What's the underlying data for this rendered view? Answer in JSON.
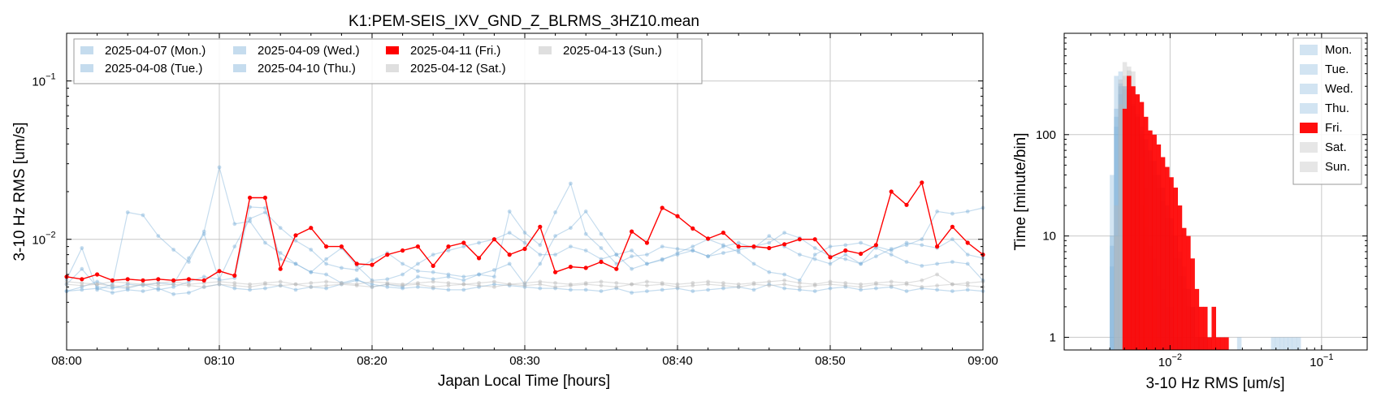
{
  "chart_data": [
    {
      "type": "line",
      "title": "K1:PEM-SEIS_IXV_GND_Z_BLRMS_3HZ10.mean",
      "xlabel": "Japan Local Time [hours]",
      "ylabel": "3-10 Hz RMS [um/s]",
      "x_tick_labels": [
        "08:00",
        "08:10",
        "08:20",
        "08:30",
        "08:40",
        "08:50",
        "09:00"
      ],
      "x_range_minutes": [
        0,
        60
      ],
      "y_scale": "log",
      "ylim": [
        0.002,
        0.2
      ],
      "y_tick_labels": [
        {
          "mant": "10",
          "exp": "−1",
          "value": 0.1
        },
        {
          "mant": "10",
          "exp": "−2",
          "value": 0.01
        }
      ],
      "grid": true,
      "legend_position": "top-left",
      "legend_columns": 4,
      "highlight_color": "#ff0000",
      "weekday_color": "#7fb2da",
      "weekend_color": "#b8b8b8",
      "series": [
        {
          "name": "2025-04-07 (Mon.)",
          "kind": "weekday",
          "values": [
            0.0056,
            0.0088,
            0.0048,
            0.0052,
            0.0148,
            0.0142,
            0.0105,
            0.0086,
            0.0072,
            0.0112,
            0.0285,
            0.0125,
            0.013,
            0.0095,
            0.0082,
            0.007,
            0.0062,
            0.006,
            0.0053,
            0.0056,
            0.005,
            0.0052,
            0.005,
            0.0058,
            0.0056,
            0.0058,
            0.0055,
            0.006,
            0.0064,
            0.007,
            0.0052,
            0.007,
            0.0105,
            0.0118,
            0.015,
            0.0108,
            0.008,
            0.0065,
            0.007,
            0.0074,
            0.0082,
            0.009,
            0.01,
            0.0092,
            0.0083,
            0.007,
            0.0062,
            0.006,
            0.0055,
            0.008,
            0.009,
            0.0092,
            0.0095,
            0.0088,
            0.008,
            0.0072,
            0.0068,
            0.007,
            0.0072,
            0.007,
            0.0055
          ]
        },
        {
          "name": "2025-04-08 (Tue.)",
          "kind": "weekday",
          "values": [
            0.0047,
            0.0048,
            0.0049,
            0.0046,
            0.0048,
            0.0047,
            0.0049,
            0.0045,
            0.0046,
            0.005,
            0.0052,
            0.0049,
            0.0048,
            0.0049,
            0.0051,
            0.0048,
            0.005,
            0.0049,
            0.0052,
            0.0055,
            0.0052,
            0.005,
            0.0049,
            0.005,
            0.0049,
            0.0048,
            0.0048,
            0.005,
            0.0052,
            0.0051,
            0.005,
            0.0049,
            0.0049,
            0.0048,
            0.0048,
            0.0047,
            0.0049,
            0.0046,
            0.0047,
            0.0048,
            0.0049,
            0.0047,
            0.0048,
            0.0049,
            0.005,
            0.0048,
            0.0052,
            0.0049,
            0.0048,
            0.0047,
            0.0049,
            0.005,
            0.0048,
            0.0049,
            0.005,
            0.0047,
            0.0049,
            0.0048,
            0.0047,
            0.0048,
            0.0047
          ]
        },
        {
          "name": "2025-04-09 (Wed.)",
          "kind": "weekday",
          "values": [
            0.0052,
            0.0065,
            0.005,
            0.0049,
            0.0052,
            0.0051,
            0.0053,
            0.0052,
            0.0076,
            0.0108,
            0.0055,
            0.0057,
            0.016,
            0.0158,
            0.0075,
            0.007,
            0.0062,
            0.0075,
            0.0088,
            0.0068,
            0.0055,
            0.0056,
            0.006,
            0.007,
            0.008,
            0.0085,
            0.009,
            0.0095,
            0.01,
            0.011,
            0.0095,
            0.008,
            0.008,
            0.009,
            0.0085,
            0.0075,
            0.008,
            0.0085,
            0.007,
            0.0075,
            0.008,
            0.0085,
            0.0078,
            0.009,
            0.0095,
            0.0088,
            0.0105,
            0.009,
            0.008,
            0.0075,
            0.007,
            0.008,
            0.007,
            0.0078,
            0.0087,
            0.0092,
            0.01,
            0.015,
            0.0145,
            0.015,
            0.0158
          ]
        },
        {
          "name": "2025-04-10 (Thu.)",
          "kind": "weekday",
          "values": [
            0.0047,
            0.005,
            0.0054,
            0.005,
            0.0049,
            0.0052,
            0.0048,
            0.005,
            0.0054,
            0.0058,
            0.0056,
            0.009,
            0.0135,
            0.0148,
            0.0118,
            0.0098,
            0.0086,
            0.007,
            0.0066,
            0.0064,
            0.0074,
            0.0082,
            0.007,
            0.0063,
            0.0062,
            0.006,
            0.0058,
            0.006,
            0.0058,
            0.015,
            0.011,
            0.0092,
            0.0148,
            0.0225,
            0.0108,
            0.0088,
            0.007,
            0.0078,
            0.008,
            0.009,
            0.0087,
            0.0085,
            0.0078,
            0.0082,
            0.0086,
            0.009,
            0.0095,
            0.011,
            0.0102,
            0.0088,
            0.0078,
            0.0075,
            0.007,
            0.009,
            0.0085,
            0.0095,
            0.0092,
            0.0088,
            0.01,
            0.008,
            0.0076
          ]
        },
        {
          "name": "2025-04-11 (Fri.)",
          "kind": "highlight",
          "values": [
            0.0058,
            0.0056,
            0.006,
            0.0055,
            0.0056,
            0.0055,
            0.0056,
            0.0055,
            0.0056,
            0.0055,
            0.0063,
            0.0059,
            0.0183,
            0.0183,
            0.0065,
            0.0106,
            0.0118,
            0.009,
            0.009,
            0.007,
            0.0069,
            0.008,
            0.0085,
            0.009,
            0.0068,
            0.009,
            0.0095,
            0.0076,
            0.01,
            0.008,
            0.0087,
            0.012,
            0.0062,
            0.0067,
            0.0066,
            0.0072,
            0.0065,
            0.0112,
            0.0095,
            0.0158,
            0.014,
            0.0117,
            0.0101,
            0.011,
            0.009,
            0.009,
            0.0088,
            0.0093,
            0.01,
            0.01,
            0.0077,
            0.0085,
            0.0081,
            0.0092,
            0.02,
            0.0165,
            0.0228,
            0.009,
            0.012,
            0.0095,
            0.008
          ]
        },
        {
          "name": "2025-04-12 (Sat.)",
          "kind": "weekend",
          "values": [
            0.0054,
            0.0053,
            0.0052,
            0.0054,
            0.0053,
            0.0052,
            0.0053,
            0.0054,
            0.0052,
            0.0053,
            0.0054,
            0.0053,
            0.0052,
            0.0053,
            0.0054,
            0.0052,
            0.0053,
            0.0054,
            0.0053,
            0.0052,
            0.0054,
            0.0053,
            0.0052,
            0.0053,
            0.0054,
            0.0053,
            0.0052,
            0.0053,
            0.0054,
            0.0052,
            0.0053,
            0.0054,
            0.0053,
            0.0052,
            0.0053,
            0.0054,
            0.0053,
            0.0052,
            0.0054,
            0.0053,
            0.0052,
            0.0053,
            0.0054,
            0.0053,
            0.0052,
            0.0053,
            0.0054,
            0.0055,
            0.0053,
            0.0052,
            0.0054,
            0.0053,
            0.0052,
            0.0053,
            0.0054,
            0.0053,
            0.0055,
            0.006,
            0.0052,
            0.0053,
            0.0054
          ]
        },
        {
          "name": "2025-04-13 (Sun.)",
          "kind": "weekend",
          "values": [
            0.0052,
            0.0051,
            0.0052,
            0.0051,
            0.005,
            0.0052,
            0.0051,
            0.0052,
            0.0051,
            0.005,
            0.0052,
            0.0051,
            0.005,
            0.0052,
            0.0051,
            0.0052,
            0.005,
            0.0051,
            0.0052,
            0.0051,
            0.005,
            0.0052,
            0.0051,
            0.0052,
            0.005,
            0.0051,
            0.0052,
            0.0051,
            0.005,
            0.0052,
            0.0051,
            0.0052,
            0.005,
            0.0051,
            0.0052,
            0.0051,
            0.005,
            0.0052,
            0.0051,
            0.0052,
            0.005,
            0.0051,
            0.0052,
            0.0051,
            0.005,
            0.0052,
            0.0051,
            0.0052,
            0.005,
            0.0051,
            0.0052,
            0.0051,
            0.005,
            0.0052,
            0.0051,
            0.0052,
            0.005,
            0.0051,
            0.0052,
            0.0051,
            0.005
          ]
        }
      ]
    },
    {
      "type": "bar",
      "subtype": "histogram",
      "xlabel": "3-10 Hz RMS [um/s]",
      "ylabel": "Time [minute/bin]",
      "x_scale": "log",
      "y_scale": "log",
      "xlim": [
        0.002,
        0.2
      ],
      "ylim": [
        0.75,
        1000
      ],
      "x_tick_labels": [
        {
          "mant": "10",
          "exp": "−2",
          "value": 0.01
        },
        {
          "mant": "10",
          "exp": "−1",
          "value": 0.1
        }
      ],
      "y_tick_labels": [
        {
          "label": "1",
          "value": 1
        },
        {
          "label": "10",
          "value": 10
        },
        {
          "label": "100",
          "value": 100
        }
      ],
      "grid": true,
      "legend_position": "top-right",
      "bin_edges_start": 0.004,
      "bin_ratio": 1.0666,
      "series": [
        {
          "name": "Mon.",
          "kind": "weekday",
          "counts": [
            5,
            120,
            250,
            300,
            280,
            180,
            120,
            90,
            70,
            55,
            40,
            30,
            22,
            15,
            10,
            6,
            4,
            3,
            2,
            2,
            1,
            1,
            1,
            1,
            0,
            0,
            0,
            0,
            0,
            0,
            1,
            0,
            0,
            0,
            0,
            0,
            0,
            0,
            1,
            1,
            1,
            1,
            1,
            1,
            1
          ]
        },
        {
          "name": "Tue.",
          "kind": "weekday",
          "counts": [
            40,
            380,
            420,
            300,
            150,
            70,
            35,
            20,
            12,
            8,
            6,
            4,
            3,
            2,
            2,
            1,
            1,
            0,
            0,
            0,
            0,
            0,
            0,
            0,
            0,
            0,
            0,
            0,
            0,
            0,
            0,
            0,
            0,
            0,
            0,
            0,
            0,
            0,
            0,
            0,
            0,
            0,
            0,
            0,
            0
          ]
        },
        {
          "name": "Wed.",
          "kind": "weekday",
          "counts": [
            10,
            180,
            320,
            300,
            250,
            200,
            160,
            120,
            90,
            70,
            55,
            40,
            30,
            20,
            15,
            10,
            7,
            5,
            3,
            2,
            2,
            1,
            1,
            0,
            0,
            0,
            0,
            0,
            0,
            0,
            0,
            0,
            0,
            0,
            0,
            0,
            0,
            0,
            0,
            0,
            0,
            0,
            0,
            0,
            0
          ]
        },
        {
          "name": "Thu.",
          "kind": "weekday",
          "counts": [
            8,
            150,
            300,
            280,
            220,
            190,
            150,
            110,
            90,
            70,
            55,
            40,
            30,
            20,
            15,
            10,
            6,
            4,
            3,
            2,
            1,
            1,
            1,
            0,
            0,
            0,
            0,
            0,
            0,
            0,
            0,
            0,
            0,
            0,
            0,
            0,
            0,
            0,
            0,
            0,
            0,
            0,
            0,
            0,
            0
          ]
        },
        {
          "name": "Fri.",
          "kind": "highlight",
          "counts": [
            0,
            0,
            0,
            180,
            380,
            300,
            250,
            210,
            150,
            110,
            100,
            80,
            60,
            48,
            38,
            30,
            20,
            12,
            10,
            6,
            3,
            2,
            2,
            1,
            2,
            1,
            1,
            1,
            0,
            0,
            0,
            0,
            0,
            0,
            0,
            0,
            0,
            0,
            0,
            0,
            0,
            0,
            0,
            0,
            0
          ]
        },
        {
          "name": "Sat.",
          "kind": "weekend",
          "counts": [
            0,
            10,
            200,
            380,
            470,
            420,
            250,
            100,
            30,
            8,
            3,
            1,
            0,
            0,
            0,
            0,
            0,
            0,
            0,
            0,
            0,
            0,
            0,
            0,
            0,
            0,
            0,
            0,
            0,
            0,
            0,
            0,
            0,
            0,
            0,
            0,
            0,
            0,
            0,
            0,
            0,
            0,
            0,
            0,
            0
          ]
        },
        {
          "name": "Sun.",
          "kind": "weekend",
          "counts": [
            0,
            20,
            350,
            520,
            430,
            300,
            150,
            60,
            20,
            6,
            2,
            1,
            0,
            0,
            0,
            0,
            0,
            0,
            0,
            0,
            0,
            0,
            0,
            0,
            0,
            0,
            0,
            0,
            0,
            0,
            0,
            0,
            0,
            0,
            0,
            0,
            0,
            0,
            0,
            0,
            0,
            0,
            0,
            0,
            0
          ]
        }
      ]
    }
  ]
}
